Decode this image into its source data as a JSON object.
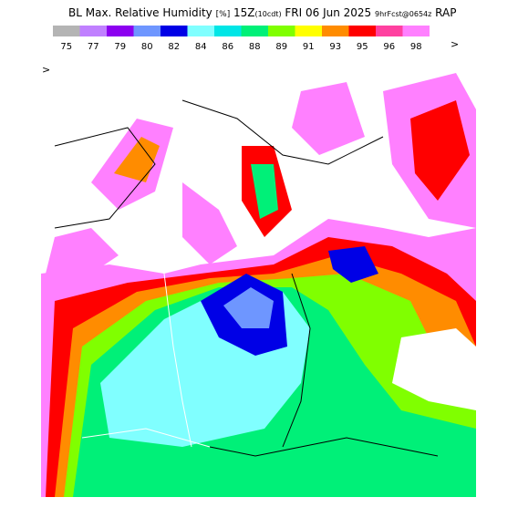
{
  "header": {
    "title": "BL Max. Relative Humidity",
    "units": "[%]",
    "valid": "15Z",
    "local": "(10cdt)",
    "date": "FRI 06 Jun 2025",
    "forecast": "9hrFcst@0654z",
    "model": "RAP"
  },
  "legend": {
    "entries": [
      {
        "label": "75",
        "color": "#b4b4b4"
      },
      {
        "label": "77",
        "color": "#c080ff"
      },
      {
        "label": "79",
        "color": "#8c00f0"
      },
      {
        "label": "80",
        "color": "#6e96ff"
      },
      {
        "label": "82",
        "color": "#0000e6"
      },
      {
        "label": "84",
        "color": "#80ffff"
      },
      {
        "label": "86",
        "color": "#00e6e6"
      },
      {
        "label": "88",
        "color": "#00f078"
      },
      {
        "label": "89",
        "color": "#80ff00"
      },
      {
        "label": "91",
        "color": "#ffff00"
      },
      {
        "label": "93",
        "color": "#ff8c00"
      },
      {
        "label": "95",
        "color": "#ff0000"
      },
      {
        "label": "96",
        "color": "#ff40a0"
      },
      {
        "label": "98",
        "color": "#ff80ff"
      }
    ],
    "more": ">"
  },
  "map": {
    "marker": ">"
  }
}
